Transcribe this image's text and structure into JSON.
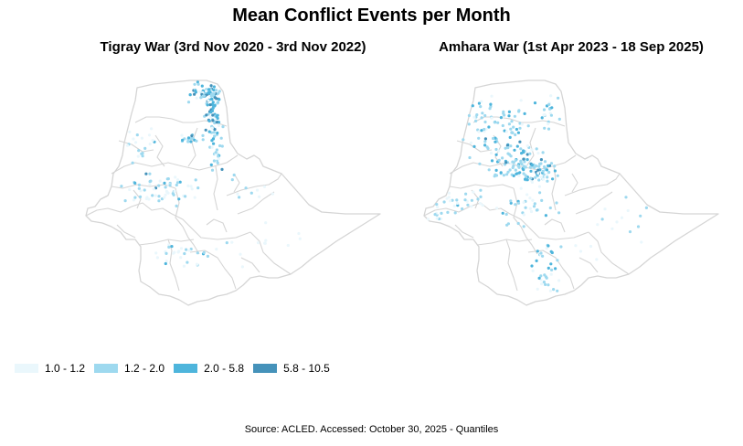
{
  "title": "Mean Conflict Events per Month",
  "panels": [
    {
      "title": "Tigray War (3rd Nov 2020 - 3rd Nov 2022)"
    },
    {
      "title": "Amhara War (1st Apr 2023 - 18 Sep 2025)"
    }
  ],
  "legend": [
    {
      "label": "1.0 - 1.2",
      "color": "#eaf7fc"
    },
    {
      "label": "1.2 - 2.0",
      "color": "#9ed9ef"
    },
    {
      "label": "2.0 - 5.8",
      "color": "#4eb5dc"
    },
    {
      "label": "5.8 - 10.5",
      "color": "#4592ba"
    }
  ],
  "source": "Source: ACLED. Accessed: October 30, 2025 - Quantiles",
  "map_style": {
    "border_color": "#d5d5d5",
    "background": "#ffffff"
  }
}
